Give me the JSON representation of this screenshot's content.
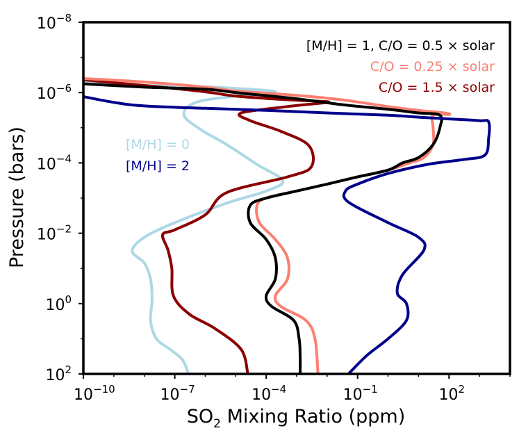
{
  "chart_data": {
    "type": "line",
    "title": "",
    "xlabel": {
      "main": "SO",
      "sub": "2",
      "rest": " Mixing Ratio (ppm)"
    },
    "ylabel": "Pressure (bars)",
    "x_scale": "log",
    "y_scale": "log",
    "y_inverted": true,
    "xlim": [
      1e-10,
      10000.0
    ],
    "ylim": [
      1e-08,
      100.0
    ],
    "x_ticks": [
      {
        "value": 1e-10,
        "base": "10",
        "exp": "−10"
      },
      {
        "value": 1e-07,
        "base": "10",
        "exp": "−7"
      },
      {
        "value": 0.0001,
        "base": "10",
        "exp": "−4"
      },
      {
        "value": 0.1,
        "base": "10",
        "exp": "−1"
      },
      {
        "value": 100.0,
        "base": "10",
        "exp": "2"
      }
    ],
    "y_ticks": [
      {
        "value": 1e-08,
        "base": "10",
        "exp": "−8"
      },
      {
        "value": 1e-06,
        "base": "10",
        "exp": "−6"
      },
      {
        "value": 0.0001,
        "base": "10",
        "exp": "−4"
      },
      {
        "value": 0.01,
        "base": "10",
        "exp": "−2"
      },
      {
        "value": 1.0,
        "base": "10",
        "exp": "0"
      },
      {
        "value": 100.0,
        "base": "10",
        "exp": "2"
      }
    ],
    "legend": {
      "location": "top-right",
      "entries": [
        {
          "label": "[M/H] = 1, C/O = 0.5 × solar",
          "color": "#000000"
        },
        {
          "label": "C/O = 0.25 × solar",
          "color": "#fa8072"
        },
        {
          "label": "C/O = 1.5 × solar",
          "color": "#8b0000"
        }
      ]
    },
    "annotations": [
      {
        "text": "[M/H] = 0",
        "color": "#add8e6"
      },
      {
        "text": "[M/H] = 2",
        "color": "#00008b"
      }
    ],
    "series": [
      {
        "name": "[M/H] = 0",
        "color": "#add8e6",
        "points": [
          [
            6.3e-11,
            5.2e-07
          ],
          [
            1e-08,
            6.3e-07
          ],
          [
            1e-06,
            6.9e-07
          ],
          [
            1e-05,
            7.6e-07
          ],
          [
            0.0002,
            9.5e-07
          ],
          [
            1e-05,
            1.26e-06
          ],
          [
            5e-07,
            1.9e-06
          ],
          [
            2e-07,
            4.4e-06
          ],
          [
            8e-07,
            1.2e-05
          ],
          [
            5e-06,
            3e-05
          ],
          [
            5e-05,
            0.00011
          ],
          [
            0.00035,
            0.00032
          ],
          [
            0.0001,
            0.00063
          ],
          [
            5e-06,
            0.0014
          ],
          [
            1e-07,
            0.005
          ],
          [
            1e-08,
            0.013
          ],
          [
            4e-09,
            0.032
          ],
          [
            1e-08,
            0.07
          ],
          [
            1.6e-08,
            0.2
          ],
          [
            1.8e-08,
            0.8
          ],
          [
            1.6e-08,
            3
          ],
          [
            2.5e-08,
            10
          ],
          [
            7e-08,
            20
          ],
          [
            1.8e-07,
            40
          ],
          [
            2.8e-07,
            100
          ]
        ]
      },
      {
        "name": "C/O = 1.5 × solar",
        "color": "#8b0000",
        "points": [
          [
            6.3e-11,
            4.2e-07
          ],
          [
            1e-08,
            6.3e-07
          ],
          [
            1e-06,
            9.5e-07
          ],
          [
            1e-05,
            1.26e-06
          ],
          [
            0.0005,
            1.6e-06
          ],
          [
            0.005,
            1.76e-06
          ],
          [
            0.01,
            1.9e-06
          ],
          [
            0.0005,
            2.5e-06
          ],
          [
            1.5e-05,
            3.8e-06
          ],
          [
            3e-05,
            6.3e-06
          ],
          [
            0.0003,
            1.26e-05
          ],
          [
            0.0025,
            3.2e-05
          ],
          [
            0.003,
            0.00013
          ],
          [
            0.0005,
            0.00025
          ],
          [
            5e-06,
            0.0007
          ],
          [
            1e-06,
            0.003
          ],
          [
            1e-07,
            0.008
          ],
          [
            4e-08,
            0.011
          ],
          [
            6e-08,
            0.03
          ],
          [
            8e-08,
            0.1
          ],
          [
            9e-08,
            0.6
          ],
          [
            3e-07,
            2
          ],
          [
            2e-06,
            5
          ],
          [
            1.5e-05,
            20
          ],
          [
            2.5e-05,
            100
          ]
        ]
      },
      {
        "name": "C/O = 0.25 × solar",
        "color": "#fa8072",
        "points": [
          [
            6.3e-11,
            3.9e-07
          ],
          [
            1e-08,
            5e-07
          ],
          [
            1e-06,
            7e-07
          ],
          [
            1e-05,
            9e-07
          ],
          [
            0.001,
            1.2e-06
          ],
          [
            0.03,
            1.6e-06
          ],
          [
            1,
            2.5e-06
          ],
          [
            10,
            3.2e-06
          ],
          [
            70,
            3.8e-06
          ],
          [
            100,
            4.2e-06
          ],
          [
            30,
            4.4e-06
          ],
          [
            30,
            1e-05
          ],
          [
            30,
            3e-05
          ],
          [
            15,
            7e-05
          ],
          [
            5,
            0.0001
          ],
          [
            1,
            0.00016
          ],
          [
            0.1,
            0.00025
          ],
          [
            0.01,
            0.0004
          ],
          [
            0.001,
            0.00063
          ],
          [
            0.0001,
            0.001
          ],
          [
            5e-05,
            0.0016
          ],
          [
            6e-05,
            0.005
          ],
          [
            0.0002,
            0.015
          ],
          [
            0.0005,
            0.05
          ],
          [
            0.0005,
            0.2
          ],
          [
            0.0002,
            0.6
          ],
          [
            0.0003,
            1.2
          ],
          [
            0.002,
            3
          ],
          [
            0.004,
            10
          ],
          [
            0.005,
            100
          ]
        ]
      },
      {
        "name": "[M/H] = 1, C/O = 0.5 × solar",
        "color": "#000000",
        "points": [
          [
            6.3e-11,
            5.5e-07
          ],
          [
            1e-08,
            7e-07
          ],
          [
            1e-06,
            8e-07
          ],
          [
            1e-05,
            1e-06
          ],
          [
            0.001,
            1.5e-06
          ],
          [
            0.03,
            2.2e-06
          ],
          [
            1,
            3e-06
          ],
          [
            10,
            3.8e-06
          ],
          [
            50,
            4.4e-06
          ],
          [
            50,
            1e-05
          ],
          [
            30,
            3e-05
          ],
          [
            10,
            7e-05
          ],
          [
            3,
            0.0001
          ],
          [
            1,
            0.00016
          ],
          [
            0.1,
            0.00025
          ],
          [
            0.01,
            0.0004
          ],
          [
            0.001,
            0.00063
          ],
          [
            0.0001,
            0.001
          ],
          [
            3e-05,
            0.0016
          ],
          [
            3e-05,
            0.005
          ],
          [
            0.0001,
            0.015
          ],
          [
            0.0002,
            0.05
          ],
          [
            0.0002,
            0.2
          ],
          [
            0.0001,
            0.6
          ],
          [
            0.00015,
            1.2
          ],
          [
            0.0008,
            3
          ],
          [
            0.0012,
            10
          ],
          [
            0.0013,
            30
          ],
          [
            0.0013,
            100
          ]
        ]
      },
      {
        "name": "[M/H] = 2",
        "color": "#00008b",
        "points": [
          [
            6.3e-11,
            1.2e-06
          ],
          [
            1e-09,
            1.9e-06
          ],
          [
            1e-08,
            2.4e-06
          ],
          [
            1e-06,
            2.8e-06
          ],
          [
            0.0001,
            3.2e-06
          ],
          [
            0.01,
            3.8e-06
          ],
          [
            1,
            4.4e-06
          ],
          [
            10,
            5e-06
          ],
          [
            100,
            5.6e-06
          ],
          [
            1000,
            6.3e-06
          ],
          [
            2000,
            6.8e-06
          ],
          [
            2000,
            2e-05
          ],
          [
            1500,
            6e-05
          ],
          [
            300,
            8e-05
          ],
          [
            20,
            0.00011
          ],
          [
            1,
            0.0002
          ],
          [
            0.1,
            0.0004
          ],
          [
            0.04,
            0.00063
          ],
          [
            0.05,
            0.0013
          ],
          [
            1,
            0.005
          ],
          [
            10,
            0.013
          ],
          [
            15,
            0.03
          ],
          [
            3,
            0.15
          ],
          [
            2,
            0.5
          ],
          [
            4,
            1
          ],
          [
            4,
            3
          ],
          [
            1,
            10
          ],
          [
            0.2,
            30
          ],
          [
            0.05,
            100
          ]
        ]
      }
    ]
  }
}
